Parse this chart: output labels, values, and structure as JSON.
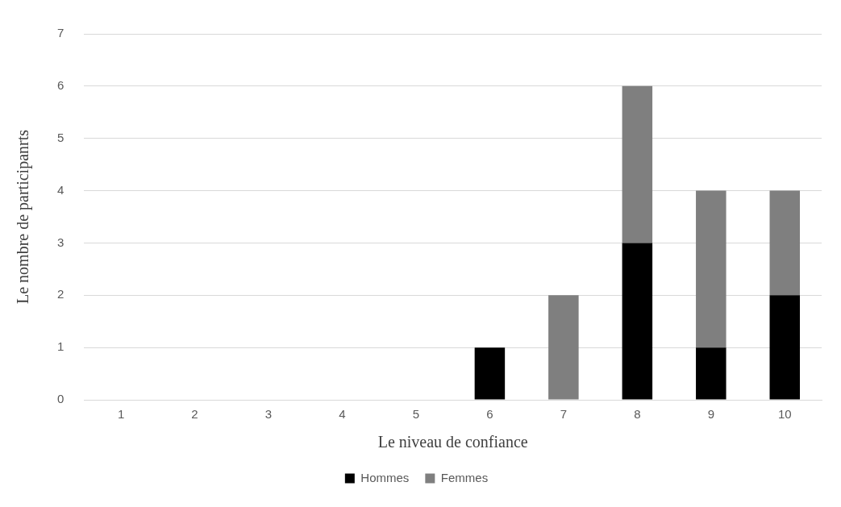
{
  "chart_data": {
    "type": "bar",
    "stacked": true,
    "xlabel": "Le niveau de confiance",
    "ylabel": "Le nombre de participanrts",
    "categories": [
      "1",
      "2",
      "3",
      "4",
      "5",
      "6",
      "7",
      "8",
      "9",
      "10"
    ],
    "series": [
      {
        "name": "Hommes",
        "color": "#000000",
        "values": [
          0,
          0,
          0,
          0,
          0,
          1,
          0,
          3,
          1,
          2
        ]
      },
      {
        "name": "Femmes",
        "color": "#7f7f7f",
        "values": [
          0,
          0,
          0,
          0,
          0,
          0,
          2,
          3,
          3,
          2
        ]
      }
    ],
    "ylim": [
      0,
      7
    ],
    "yticks": [
      0,
      1,
      2,
      3,
      4,
      5,
      6,
      7
    ],
    "grid": "y",
    "legend": "bottom"
  }
}
